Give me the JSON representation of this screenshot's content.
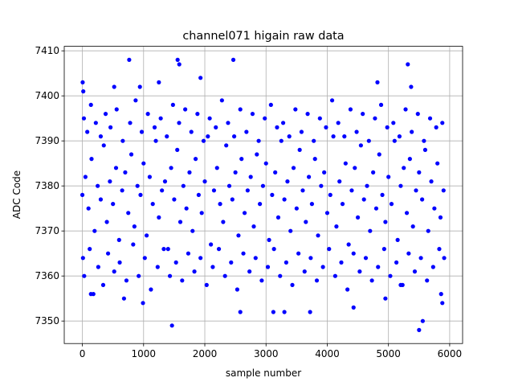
{
  "chart_data": {
    "type": "scatter",
    "title": "channel071 higain raw data",
    "x_label": "sample number",
    "y_label": "ADC Code",
    "color": "#0000ff",
    "grid": true,
    "xlim": [
      -296,
      6211
    ],
    "ylim": [
      7345,
      7411
    ],
    "xticks": [
      0,
      1000,
      2000,
      3000,
      4000,
      5000,
      6000
    ],
    "yticks": [
      7350,
      7360,
      7370,
      7380,
      7390,
      7400,
      7410
    ],
    "series": [
      {
        "name": "ADC Code",
        "color": "#0000ff",
        "x": [
          0,
          50,
          100,
          150,
          200,
          250,
          300,
          350,
          400,
          450,
          500,
          550,
          600,
          650,
          700,
          750,
          800,
          850,
          900,
          950,
          1000,
          1050,
          1100,
          1150,
          1200,
          1250,
          1300,
          1350,
          1400,
          1450,
          1500,
          1550,
          1600,
          1650,
          1700,
          1750,
          1800,
          1850,
          1900,
          1950,
          2000,
          2050,
          2100,
          2150,
          2200,
          2250,
          2300,
          2350,
          2400,
          2450,
          2500,
          2550,
          2600,
          2650,
          2700,
          2750,
          2800,
          2850,
          2900,
          2950,
          3000,
          3050,
          3100,
          3150,
          3200,
          3250,
          3300,
          3350,
          3400,
          3450,
          3500,
          3550,
          3600,
          3650,
          3700,
          3750,
          3800,
          3850,
          3900,
          3950,
          4000,
          4050,
          4100,
          4150,
          4200,
          4250,
          4300,
          4350,
          4400,
          4450,
          4500,
          4550,
          4600,
          4650,
          4700,
          4750,
          4800,
          4850,
          4900,
          4950,
          5000,
          5050,
          5100,
          5150,
          5200,
          5250,
          5300,
          5350,
          5400,
          5450,
          5500,
          5550,
          5600,
          5650,
          5700,
          5750,
          5800,
          5850,
          5900,
          10,
          25,
          30,
          80,
          120,
          140,
          180,
          220,
          260,
          300,
          340,
          380,
          420,
          460,
          520,
          560,
          610,
          660,
          720,
          780,
          830,
          870,
          920,
          970,
          1020,
          1070,
          1120,
          1180,
          1230,
          1280,
          1330,
          1380,
          1430,
          1480,
          1530,
          1580,
          1630,
          1680,
          1730,
          1780,
          1830,
          1880,
          1930,
          1980,
          2030,
          2080,
          2130,
          2180,
          2230,
          2280,
          2330,
          2380,
          2430,
          2480,
          2530,
          2580,
          2630,
          2680,
          2730,
          2780,
          2830,
          2880,
          2930,
          2980,
          3030,
          3080,
          3130,
          3180,
          3230,
          3280,
          3330,
          3380,
          3430,
          3480,
          3530,
          3580,
          3630,
          3680,
          3730,
          3780,
          3830,
          3880,
          3930,
          3980,
          4030,
          4080,
          4130,
          4180,
          4230,
          4280,
          4330,
          4380,
          4430,
          4480,
          4530,
          4580,
          4630,
          4680,
          4730,
          4780,
          4830,
          4880,
          4930,
          4980,
          5030,
          5080,
          5130,
          5180,
          5230,
          5280,
          5330,
          5380,
          5430,
          5480,
          5530,
          5580,
          5630,
          5680,
          5730,
          5780,
          5830,
          5880,
          5910,
          5,
          15,
          765,
          2466,
          1556,
          1583,
          5316,
          1464,
          5500,
          5560,
          990,
          5880,
          5860,
          1930,
          2580,
          3120,
          4820,
          5200,
          5370,
          140,
          520,
          940,
          1250,
          680,
          3300,
          3720,
          4430,
          4950
        ],
        "values": [
          7378,
          7382,
          7375,
          7386,
          7370,
          7380,
          7377,
          7389,
          7372,
          7381,
          7376,
          7384,
          7368,
          7379,
          7383,
          7374,
          7387,
          7371,
          7380,
          7378,
          7385,
          7369,
          7382,
          7376,
          7390,
          7373,
          7379,
          7381,
          7366,
          7384,
          7377,
          7388,
          7372,
          7380,
          7375,
          7383,
          7370,
          7386,
          7378,
          7374,
          7381,
          7391,
          7367,
          7379,
          7384,
          7376,
          7372,
          7389,
          7380,
          7377,
          7383,
          7369,
          7386,
          7374,
          7379,
          7382,
          7371,
          7387,
          7376,
          7380,
          7385,
          7368,
          7378,
          7383,
          7373,
          7390,
          7377,
          7381,
          7370,
          7384,
          7375,
          7388,
          7379,
          7372,
          7382,
          7376,
          7386,
          7369,
          7380,
          7383,
          7374,
          7378,
          7391,
          7371,
          7381,
          7376,
          7385,
          7367,
          7379,
          7384,
          7373,
          7389,
          7377,
          7380,
          7370,
          7383,
          7375,
          7387,
          7378,
          7372,
          7382,
          7376,
          7390,
          7368,
          7380,
          7384,
          7374,
          7386,
          7371,
          7379,
          7383,
          7377,
          7388,
          7370,
          7381,
          7375,
          7385,
          7373,
          7379,
          7364,
          7395,
          7360,
          7392,
          7366,
          7398,
          7356,
          7394,
          7362,
          7391,
          7358,
          7396,
          7365,
          7393,
          7361,
          7397,
          7363,
          7390,
          7359,
          7394,
          7367,
          7399,
          7360,
          7392,
          7364,
          7396,
          7357,
          7393,
          7362,
          7395,
          7366,
          7391,
          7360,
          7398,
          7363,
          7394,
          7359,
          7397,
          7365,
          7392,
          7361,
          7396,
          7364,
          7390,
          7358,
          7395,
          7362,
          7393,
          7366,
          7399,
          7360,
          7394,
          7363,
          7391,
          7357,
          7397,
          7365,
          7392,
          7361,
          7396,
          7364,
          7390,
          7359,
          7395,
          7362,
          7398,
          7366,
          7393,
          7360,
          7394,
          7363,
          7391,
          7358,
          7397,
          7365,
          7392,
          7361,
          7396,
          7364,
          7390,
          7359,
          7395,
          7362,
          7393,
          7366,
          7399,
          7360,
          7394,
          7363,
          7391,
          7357,
          7397,
          7365,
          7392,
          7361,
          7396,
          7364,
          7390,
          7359,
          7395,
          7362,
          7398,
          7366,
          7393,
          7360,
          7394,
          7363,
          7391,
          7358,
          7397,
          7365,
          7392,
          7361,
          7396,
          7364,
          7390,
          7359,
          7395,
          7362,
          7393,
          7366,
          7394,
          7364,
          7403,
          7401,
          7408,
          7408,
          7408,
          7407,
          7407,
          7349,
          7348,
          7350,
          7354,
          7354,
          7356,
          7404,
          7352,
          7352,
          7403,
          7358,
          7402,
          7356,
          7402,
          7402,
          7403,
          7355,
          7352,
          7352,
          7353,
          7355
        ]
      }
    ]
  }
}
